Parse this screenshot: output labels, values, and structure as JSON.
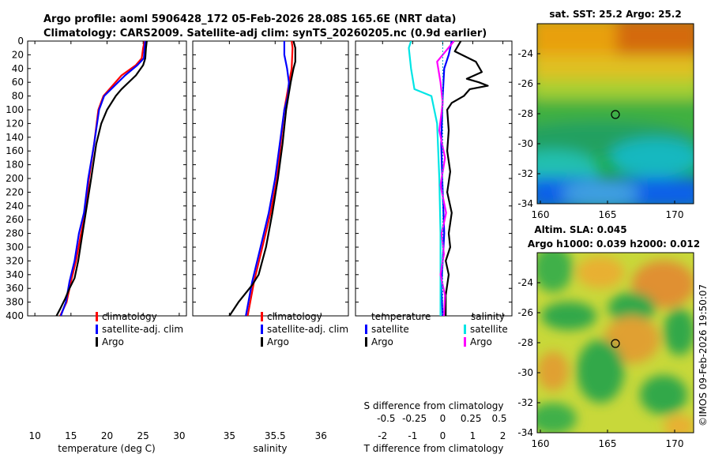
{
  "title": {
    "line1": "Argo profile: aoml 5906428_172 05-Feb-2026 28.08S 165.6E (NRT data)",
    "line2": "Climatology: CARS2009. Satellite-adj clim: synTS_20260205.nc (0.9d earlier)"
  },
  "stamp": "©IMOS 09-Feb-2026 19:50:07",
  "colors": {
    "climatology": "#ff0000",
    "satellite": "#0000ff",
    "argo": "#000000",
    "sat_salinity": "#00e5e5",
    "argo_salinity": "#ff00ff"
  },
  "depth_axis": {
    "ylim": [
      0,
      400
    ],
    "ticks": [
      "0",
      "20",
      "40",
      "60",
      "80",
      "100",
      "120",
      "140",
      "160",
      "180",
      "200",
      "220",
      "240",
      "260",
      "280",
      "300",
      "320",
      "340",
      "360",
      "380",
      "400"
    ]
  },
  "chart_data": [
    {
      "type": "line",
      "name": "temperature-profile",
      "xlabel": "temperature (deg C)",
      "xlim": [
        9,
        31
      ],
      "xticks": [
        "10",
        "15",
        "20",
        "25",
        "30"
      ],
      "legend": [
        "climatology",
        "satellite-adj. clim",
        "Argo"
      ],
      "series": [
        {
          "name": "climatology",
          "x": [
            25.2,
            25.0,
            24.8,
            24.0,
            22.0,
            19.5,
            18.8,
            18.2,
            17.5,
            17.0,
            16.4,
            15.7,
            15.0,
            14.4,
            13.5
          ],
          "depth": [
            0,
            10,
            25,
            35,
            50,
            80,
            100,
            150,
            200,
            250,
            280,
            320,
            350,
            380,
            400
          ]
        },
        {
          "name": "satellite-adj. clim",
          "x": [
            25.3,
            25.2,
            25.1,
            24.2,
            22.5,
            19.6,
            18.9,
            18.2,
            17.4,
            16.8,
            16.1,
            15.5,
            14.8,
            14.3,
            13.6
          ],
          "depth": [
            0,
            10,
            25,
            35,
            50,
            80,
            100,
            150,
            200,
            250,
            280,
            320,
            350,
            380,
            400
          ]
        },
        {
          "name": "Argo",
          "x": [
            25.5,
            25.4,
            25.3,
            25.0,
            24.0,
            22.0,
            21.2,
            20.0,
            19.2,
            18.5,
            17.8,
            17.2,
            16.6,
            16.0,
            15.5,
            14.8,
            14.2,
            13.5,
            13.0
          ],
          "depth": [
            0,
            10,
            25,
            35,
            50,
            70,
            80,
            100,
            120,
            150,
            200,
            240,
            280,
            320,
            345,
            360,
            375,
            390,
            400
          ]
        }
      ]
    },
    {
      "type": "line",
      "name": "salinity-profile",
      "xlabel": "salinity",
      "xlim": [
        34.6,
        36.3
      ],
      "xticks": [
        "35",
        "35.5",
        "36"
      ],
      "legend": [
        "climatology",
        "satellite-adj. clim",
        "Argo"
      ],
      "series": [
        {
          "name": "climatology",
          "x": [
            35.68,
            35.69,
            35.68,
            35.64,
            35.6,
            35.56,
            35.52,
            35.45,
            35.36,
            35.27,
            35.2
          ],
          "depth": [
            0,
            10,
            40,
            70,
            100,
            150,
            200,
            250,
            300,
            350,
            400
          ]
        },
        {
          "name": "satellite-adj. clim",
          "x": [
            35.6,
            35.6,
            35.63,
            35.65,
            35.64,
            35.6,
            35.55,
            35.5,
            35.43,
            35.34,
            35.25,
            35.18
          ],
          "depth": [
            0,
            20,
            40,
            60,
            80,
            100,
            150,
            200,
            250,
            300,
            350,
            400
          ]
        },
        {
          "name": "Argo",
          "x": [
            35.7,
            35.72,
            35.72,
            35.7,
            35.67,
            35.62,
            35.58,
            35.53,
            35.47,
            35.4,
            35.32,
            35.25,
            35.1,
            35.0
          ],
          "depth": [
            0,
            10,
            30,
            40,
            60,
            100,
            150,
            200,
            250,
            300,
            340,
            355,
            380,
            400
          ]
        }
      ]
    },
    {
      "type": "line",
      "name": "difference-profile",
      "xlabel": "T difference from climatology",
      "xlabel_top": "S difference from climatology",
      "xlim": [
        -2.9,
        2.3
      ],
      "xticks": [
        "-2",
        "-1",
        "0",
        "1",
        "2"
      ],
      "xticks_s": [
        "-0.5",
        "-0.25",
        "0",
        "0.25",
        "0.5"
      ],
      "legend_left_title": "temperature",
      "legend_right_title": "salinity",
      "legend": [
        "satellite",
        "Argo",
        "satellite",
        "Argo"
      ],
      "series": [
        {
          "name": "T satellite",
          "x": [
            0.3,
            0.2,
            0.05,
            0,
            -0.05,
            0,
            0.05,
            0,
            -0.05,
            0
          ],
          "depth": [
            0,
            20,
            40,
            80,
            150,
            220,
            280,
            320,
            360,
            400
          ]
        },
        {
          "name": "T Argo",
          "x": [
            0.6,
            0.4,
            1.1,
            1.3,
            0.8,
            1.2,
            1.5,
            0.9,
            0.7,
            0.3,
            0.15,
            0.2,
            0.15,
            0.25,
            0.15,
            0.3,
            0.2,
            0.25,
            0.1,
            0.2,
            0.1,
            0.1
          ],
          "depth": [
            0,
            15,
            30,
            45,
            55,
            60,
            65,
            70,
            80,
            90,
            100,
            130,
            160,
            190,
            220,
            250,
            280,
            300,
            320,
            340,
            370,
            400
          ]
        },
        {
          "name": "S satellite",
          "x": [
            -0.28,
            -0.3,
            -0.28,
            -0.25,
            -0.1,
            -0.05,
            -0.03,
            -0.02,
            -0.02,
            -0.02
          ],
          "depth": [
            0,
            10,
            40,
            70,
            80,
            120,
            200,
            280,
            340,
            400
          ]
        },
        {
          "name": "S Argo",
          "x": [
            0.1,
            0.05,
            -0.05,
            -0.02,
            0,
            -0.03,
            0.02,
            -0.02,
            0.03,
            -0.01,
            0.01,
            -0.02,
            0.02,
            0.01
          ],
          "depth": [
            0,
            10,
            30,
            60,
            90,
            130,
            170,
            210,
            250,
            280,
            310,
            340,
            370,
            400
          ]
        }
      ]
    }
  ],
  "maps": {
    "sst": {
      "title": "sat. SST: 25.2 Argo: 25.2",
      "yticks": [
        "-24",
        "-26",
        "-28",
        "-30",
        "-32",
        "-34"
      ],
      "xticks": [
        "160",
        "165",
        "170"
      ]
    },
    "sla": {
      "title1": "Altim. SLA: 0.045",
      "title2": "Argo h1000: 0.039 h2000: 0.012",
      "yticks": [
        "-24",
        "-26",
        "-28",
        "-30",
        "-32",
        "-34"
      ],
      "xticks": [
        "160",
        "165",
        "170"
      ]
    }
  }
}
